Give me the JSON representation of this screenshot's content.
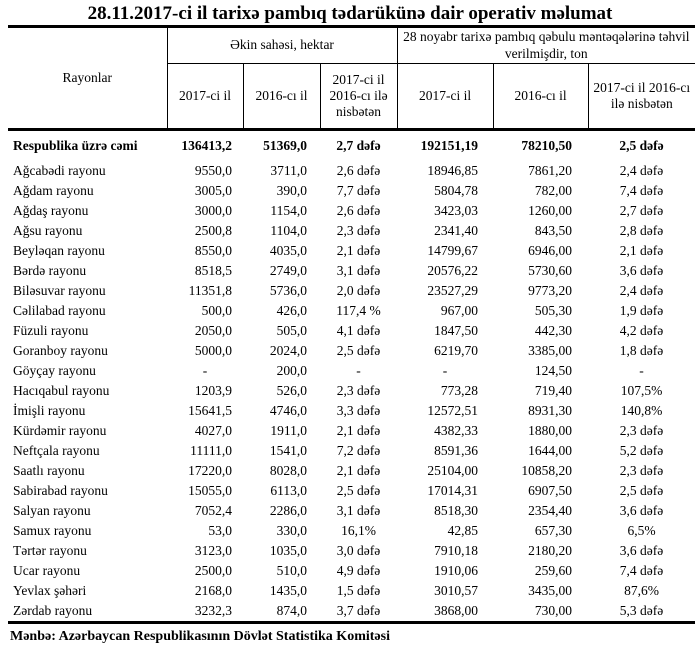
{
  "title": "28.11.2017-ci il tarixə pambıq tədarükünə dair operativ məlumat",
  "table": {
    "header": {
      "rayonlar": "Rayonlar",
      "group1": "Əkin sahəsi, hektar",
      "group2": "28 noyabr tarixə pambıq qəbulu məntəqələrinə təhvil verilmişdir, ton",
      "sub": [
        "2017-ci il",
        "2016-cı il",
        "2017-ci il 2016-cı ilə nisbətən",
        "2017-ci il",
        "2016-cı il",
        "2017-ci il 2016-cı ilə nisbətən"
      ]
    },
    "rows": [
      {
        "bold": true,
        "cells": [
          "Respublika üzrə cəmi",
          "136413,2",
          "51369,0",
          "2,7 dəfə",
          "192151,19",
          "78210,50",
          "2,5 dəfə"
        ]
      },
      {
        "bold": false,
        "cells": [
          "Ağcabədi rayonu",
          "9550,0",
          "3711,0",
          "2,6 dəfə",
          "18946,85",
          "7861,20",
          "2,4 dəfə"
        ]
      },
      {
        "bold": false,
        "cells": [
          "Ağdam rayonu",
          "3005,0",
          "390,0",
          "7,7 dəfə",
          "5804,78",
          "782,00",
          "7,4 dəfə"
        ]
      },
      {
        "bold": false,
        "cells": [
          "Ağdaş rayonu",
          "3000,0",
          "1154,0",
          "2,6 dəfə",
          "3423,03",
          "1260,00",
          "2,7 dəfə"
        ]
      },
      {
        "bold": false,
        "cells": [
          "Ağsu rayonu",
          "2500,8",
          "1104,0",
          "2,3 dəfə",
          "2341,40",
          "843,50",
          "2,8 dəfə"
        ]
      },
      {
        "bold": false,
        "cells": [
          "Beyləqan rayonu",
          "8550,0",
          "4035,0",
          "2,1 dəfə",
          "14799,67",
          "6946,00",
          "2,1 dəfə"
        ]
      },
      {
        "bold": false,
        "cells": [
          "Bərdə rayonu",
          "8518,5",
          "2749,0",
          "3,1 dəfə",
          "20576,22",
          "5730,60",
          "3,6 dəfə"
        ]
      },
      {
        "bold": false,
        "cells": [
          "Biləsuvar rayonu",
          "11351,8",
          "5736,0",
          "2,0 dəfə",
          "23527,29",
          "9773,20",
          "2,4 dəfə"
        ]
      },
      {
        "bold": false,
        "cells": [
          "Cəlilabad rayonu",
          "500,0",
          "426,0",
          "117,4 %",
          "967,00",
          "505,30",
          "1,9 dəfə"
        ]
      },
      {
        "bold": false,
        "cells": [
          "Füzuli rayonu",
          "2050,0",
          "505,0",
          "4,1 dəfə",
          "1847,50",
          "442,30",
          "4,2 dəfə"
        ]
      },
      {
        "bold": false,
        "cells": [
          "Goranboy rayonu",
          "5000,0",
          "2024,0",
          "2,5 dəfə",
          "6219,70",
          "3385,00",
          "1,8 dəfə"
        ]
      },
      {
        "bold": false,
        "cells": [
          "Göyçay rayonu",
          "-",
          "200,0",
          "-",
          "-",
          "124,50",
          "-"
        ]
      },
      {
        "bold": false,
        "cells": [
          "Hacıqabul rayonu",
          "1203,9",
          "526,0",
          "2,3 dəfə",
          "773,28",
          "719,40",
          "107,5%"
        ]
      },
      {
        "bold": false,
        "cells": [
          "İmişli rayonu",
          "15641,5",
          "4746,0",
          "3,3 dəfə",
          "12572,51",
          "8931,30",
          "140,8%"
        ]
      },
      {
        "bold": false,
        "cells": [
          "Kürdəmir rayonu",
          "4027,0",
          "1911,0",
          "2,1 dəfə",
          "4382,33",
          "1880,00",
          "2,3 dəfə"
        ]
      },
      {
        "bold": false,
        "cells": [
          "Neftçala rayonu",
          "11111,0",
          "1541,0",
          "7,2 dəfə",
          "8591,36",
          "1644,00",
          "5,2 dəfə"
        ]
      },
      {
        "bold": false,
        "cells": [
          "Saatlı rayonu",
          "17220,0",
          "8028,0",
          "2,1 dəfə",
          "25104,00",
          "10858,20",
          "2,3 dəfə"
        ]
      },
      {
        "bold": false,
        "cells": [
          "Sabirabad rayonu",
          "15055,0",
          "6113,0",
          "2,5 dəfə",
          "17014,31",
          "6907,50",
          "2,5 dəfə"
        ]
      },
      {
        "bold": false,
        "cells": [
          "Salyan rayonu",
          "7052,4",
          "2286,0",
          "3,1 dəfə",
          "8518,30",
          "2354,40",
          "3,6 dəfə"
        ]
      },
      {
        "bold": false,
        "cells": [
          "Samux rayonu",
          "53,0",
          "330,0",
          "16,1%",
          "42,85",
          "657,30",
          "6,5%"
        ]
      },
      {
        "bold": false,
        "cells": [
          "Tərtər rayonu",
          "3123,0",
          "1035,0",
          "3,0 dəfə",
          "7910,18",
          "2180,20",
          "3,6 dəfə"
        ]
      },
      {
        "bold": false,
        "cells": [
          "Ucar rayonu",
          "2500,0",
          "510,0",
          "4,9 dəfə",
          "1910,06",
          "259,60",
          "7,4 dəfə"
        ]
      },
      {
        "bold": false,
        "cells": [
          "Yevlax şəhəri",
          "2168,0",
          "1435,0",
          "1,5 dəfə",
          "3010,57",
          "3435,00",
          "87,6%"
        ]
      },
      {
        "bold": false,
        "cells": [
          "Zərdab rayonu",
          "3232,3",
          "874,0",
          "3,7 dəfə",
          "3868,00",
          "730,00",
          "5,3 dəfə"
        ]
      }
    ]
  },
  "footer": {
    "source": "Mənbə: Azərbaycan Respublikasının Dövlət Statistika Komitəsi"
  }
}
